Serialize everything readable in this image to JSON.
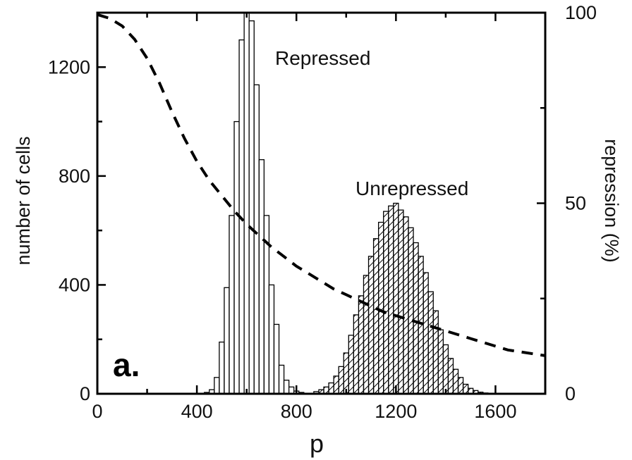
{
  "chart_data": {
    "type": "bar",
    "xlabel": "p",
    "ylabel": "number of cells",
    "y2label": "repression (%)",
    "xlim": [
      0,
      1800
    ],
    "ylim": [
      0,
      1400
    ],
    "y2lim": [
      0,
      100
    ],
    "x_ticks": [
      0,
      400,
      800,
      1200,
      1600
    ],
    "y_ticks": [
      0,
      400,
      800,
      1200
    ],
    "y2_ticks": [
      0,
      50,
      100
    ],
    "panel_label": "a.",
    "bin_width": 20,
    "series": [
      {
        "name": "Repressed",
        "style": "open",
        "x": [
          440,
          460,
          480,
          500,
          520,
          540,
          560,
          580,
          600,
          620,
          640,
          660,
          680,
          700,
          720,
          740,
          760,
          780,
          800,
          820
        ],
        "values": [
          5,
          15,
          60,
          190,
          390,
          655,
          1000,
          1300,
          1400,
          1370,
          1135,
          860,
          655,
          400,
          255,
          105,
          50,
          25,
          10,
          5
        ]
      },
      {
        "name": "Unrepressed",
        "style": "hatched",
        "x": [
          880,
          900,
          920,
          940,
          960,
          980,
          1000,
          1020,
          1040,
          1060,
          1080,
          1100,
          1120,
          1140,
          1160,
          1180,
          1200,
          1220,
          1240,
          1260,
          1280,
          1300,
          1320,
          1340,
          1360,
          1380,
          1400,
          1420,
          1440,
          1460,
          1480,
          1500,
          1520,
          1540,
          1560
        ],
        "values": [
          8,
          15,
          25,
          40,
          65,
          100,
          150,
          215,
          290,
          360,
          435,
          505,
          570,
          630,
          670,
          690,
          700,
          675,
          650,
          610,
          555,
          505,
          445,
          375,
          305,
          235,
          180,
          130,
          90,
          60,
          35,
          20,
          12,
          6,
          3
        ]
      }
    ],
    "repression_curve": {
      "name": "repression (%)",
      "x": [
        0,
        50,
        100,
        150,
        200,
        250,
        300,
        350,
        400,
        450,
        500,
        550,
        600,
        650,
        700,
        750,
        800,
        850,
        900,
        950,
        1000,
        1050,
        1100,
        1150,
        1200,
        1250,
        1300,
        1350,
        1400,
        1450,
        1500,
        1550,
        1600,
        1650,
        1700,
        1750,
        1800
      ],
      "y": [
        99.5,
        98.5,
        96.5,
        93,
        88,
        81.5,
        74,
        67,
        61,
        56,
        52,
        48,
        44.5,
        41.5,
        38.5,
        36,
        33.5,
        31.5,
        29.5,
        27.5,
        26,
        24.5,
        23,
        21.5,
        20.5,
        19.5,
        18.5,
        17.5,
        16.5,
        15.5,
        14.5,
        13.5,
        12.5,
        11.5,
        11,
        10.5,
        10
      ]
    },
    "annotations": [
      {
        "text": "Repressed"
      },
      {
        "text": "Unrepressed"
      }
    ]
  }
}
